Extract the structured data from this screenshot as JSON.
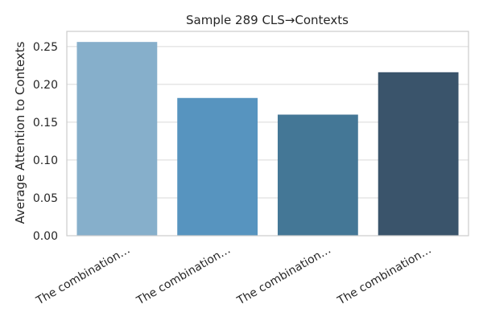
{
  "chart_data": {
    "type": "bar",
    "title": "Sample 289 CLS→Contexts",
    "xlabel": "",
    "ylabel": "Average Attention to Contexts",
    "categories": [
      "The combination…",
      "The combination…",
      "The combination…",
      "The combination…"
    ],
    "values": [
      0.256,
      0.182,
      0.16,
      0.216
    ],
    "ylim": [
      0,
      0.27
    ],
    "yticks": [
      0.0,
      0.05,
      0.1,
      0.15,
      0.2,
      0.25
    ],
    "ytick_labels": [
      "0.00",
      "0.05",
      "0.10",
      "0.15",
      "0.20",
      "0.25"
    ],
    "grid": "horizontal",
    "colors": [
      "#86afcb",
      "#5794bf",
      "#447796",
      "#3a546b"
    ],
    "spine_color": "#cccccc",
    "grid_color": "#d9d9d9"
  }
}
